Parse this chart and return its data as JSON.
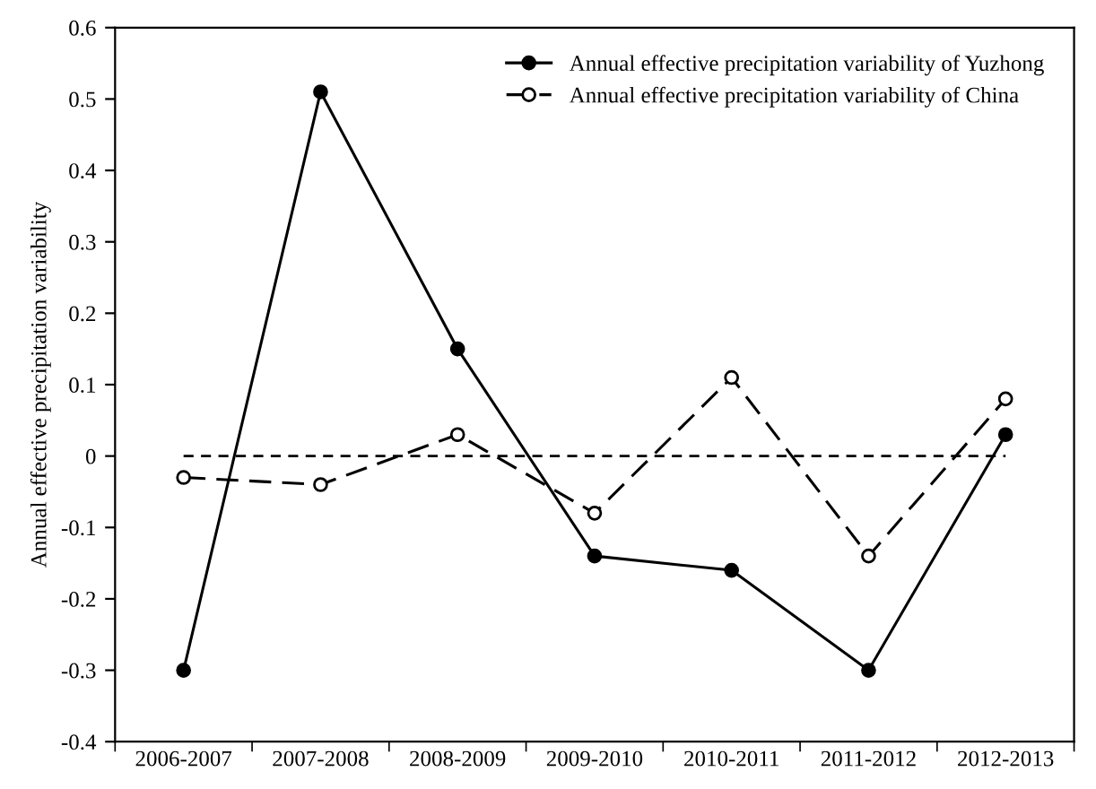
{
  "chart_data": {
    "type": "line",
    "ylabel": "Annual effective precipitation variability",
    "categories": [
      "2006-2007",
      "2007-2008",
      "2008-2009",
      "2009-2010",
      "2010-2011",
      "2011-2012",
      "2012-2013"
    ],
    "series": [
      {
        "name": "Annual effective precipitation variability of Yuzhong",
        "color": "#000000",
        "line_style": "solid",
        "marker": "circle",
        "values": [
          -0.3,
          0.51,
          0.15,
          -0.14,
          -0.16,
          -0.3,
          0.03
        ]
      },
      {
        "name": "Annual effective precipitation variability of China",
        "color": "#000000",
        "line_style": "dashed",
        "marker": "circle",
        "values": [
          -0.03,
          -0.04,
          0.03,
          -0.08,
          0.11,
          -0.14,
          0.08
        ]
      }
    ],
    "ref_lines": [
      {
        "axis": "y",
        "value": 0,
        "color": "#000000",
        "line_style": "dashed"
      }
    ],
    "ylim": [
      -0.4,
      0.6
    ],
    "yticks": [
      -0.4,
      -0.3,
      -0.2,
      -0.1,
      0,
      0.1,
      0.2,
      0.3,
      0.4,
      0.5,
      0.6
    ],
    "grid": false,
    "legend": "top right"
  }
}
